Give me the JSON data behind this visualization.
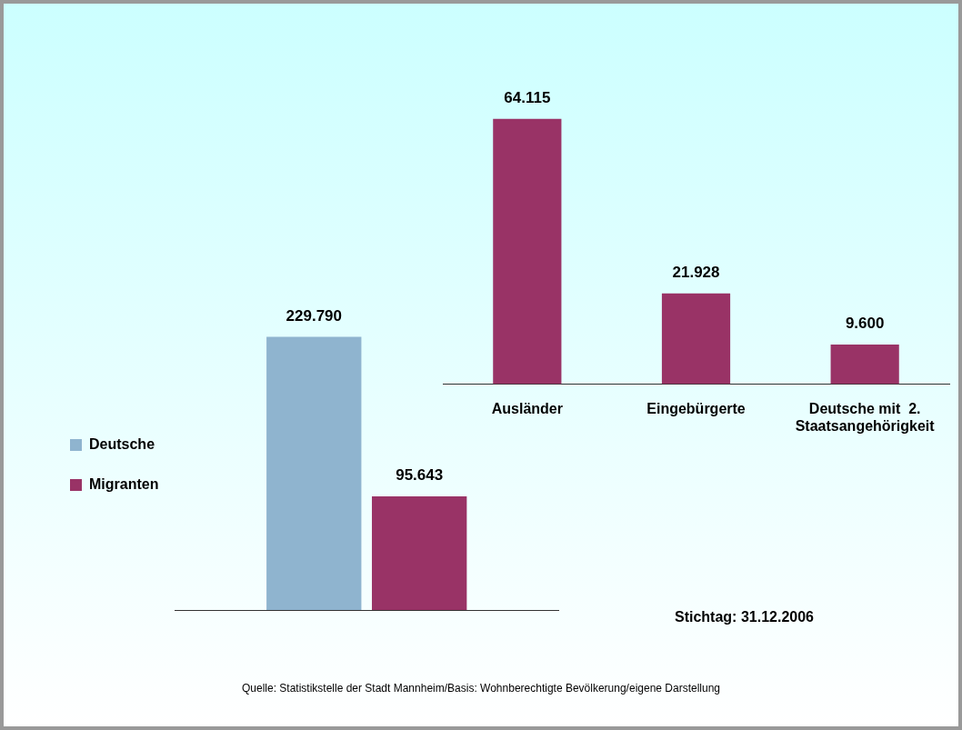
{
  "chart_data": [
    {
      "type": "bar",
      "categories": [
        null
      ],
      "series": [
        {
          "name": "Deutsche",
          "color": "#8fb4cf",
          "values": [
            229790
          ],
          "value_labels": [
            "229.790"
          ]
        },
        {
          "name": "Migranten",
          "color": "#993366",
          "values": [
            95643
          ],
          "value_labels": [
            "95.643"
          ]
        }
      ],
      "legend": "left",
      "tick_labels": false,
      "grid": false,
      "annotations": [
        "Quelle: Statistikstelle der Stadt Mannheim/Basis: Wohnberechtigte Bevölkerung/eigene Darstellung"
      ]
    },
    {
      "type": "bar",
      "categories": [
        "Ausländer",
        "Eingebürgerte",
        "Deutsche mit  2. Staatsangehörigkeit"
      ],
      "series": [
        {
          "color": "#993366",
          "values": [
            64115,
            21928,
            9600
          ],
          "value_labels": [
            "64.115",
            "21.928",
            "9.600"
          ]
        }
      ],
      "legend": false,
      "tick_labels": "x",
      "grid": false,
      "annotations": [
        "Stichtag: 31.12.2006"
      ]
    }
  ]
}
